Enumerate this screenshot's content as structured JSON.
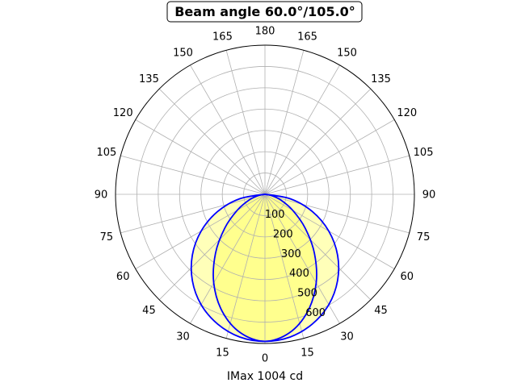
{
  "chart_data": {
    "type": "polar",
    "title": "Beam angle 60.0°/105.0°",
    "xlabel": "IMax 1004 cd",
    "angle_tick_labels": [
      "0",
      "15",
      "30",
      "45",
      "60",
      "75",
      "90",
      "105",
      "120",
      "135",
      "150",
      "165",
      "180",
      "165",
      "150",
      "135",
      "120",
      "105",
      "90",
      "75",
      "60",
      "45",
      "30",
      "15"
    ],
    "radial_tick_labels": [
      "100",
      "200",
      "300",
      "400",
      "500",
      "600"
    ],
    "rlim": [
      0,
      700
    ],
    "grid": true,
    "colors": {
      "curve": "#0000ff",
      "fill": "#ffff80",
      "grid": "#b0b0b0",
      "axis": "#000000"
    },
    "series": [
      {
        "half_angles_deg": [
          0,
          10,
          20,
          30,
          40,
          50,
          60,
          70,
          80,
          90
        ],
        "values": [
          690,
          680,
          648,
          598,
          529,
          444,
          345,
          236,
          120,
          0
        ]
      },
      {
        "half_angles_deg": [
          0,
          10,
          20,
          30,
          40,
          50,
          60,
          70,
          80,
          90
        ],
        "values": [
          690,
          660,
          585,
          480,
          360,
          245,
          150,
          80,
          30,
          0
        ]
      }
    ]
  }
}
